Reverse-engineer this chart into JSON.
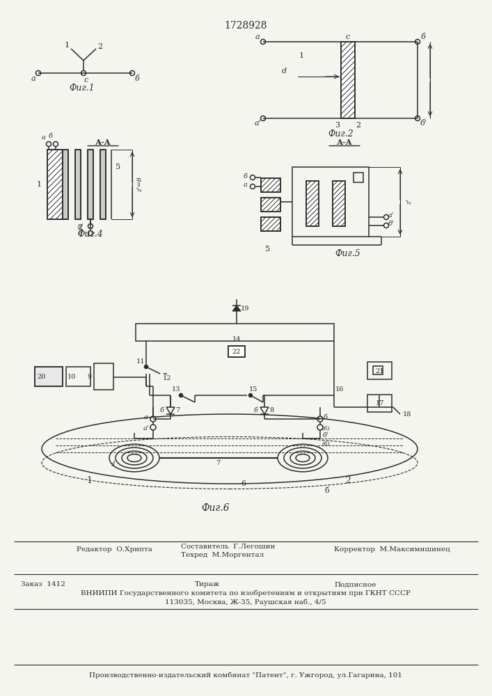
{
  "title": "1728928",
  "bg_color": "#f5f5f0",
  "line_color": "#2a2a2a",
  "footer": {
    "editor": "Редактор  О.Хрипта",
    "composer": "Составитель  Г.Легошин",
    "techred": "Техред  М.Моргентал",
    "corrector": "Корректор  М.Максимишинец",
    "order": "Заказ  1412",
    "tirazh": "Тираж",
    "podpisnoe": "Подписное",
    "vniiipi": "ВНИИПИ Государственного комитета по изобретениям и открытиям при ГКНТ СССР",
    "address": "113035, Москва, Ж-35, Раушская наб., 4/5",
    "patent": "Производственно-издательский комбинат \"Патент\", г. Ужгород, ул.Гагарина, 101"
  }
}
